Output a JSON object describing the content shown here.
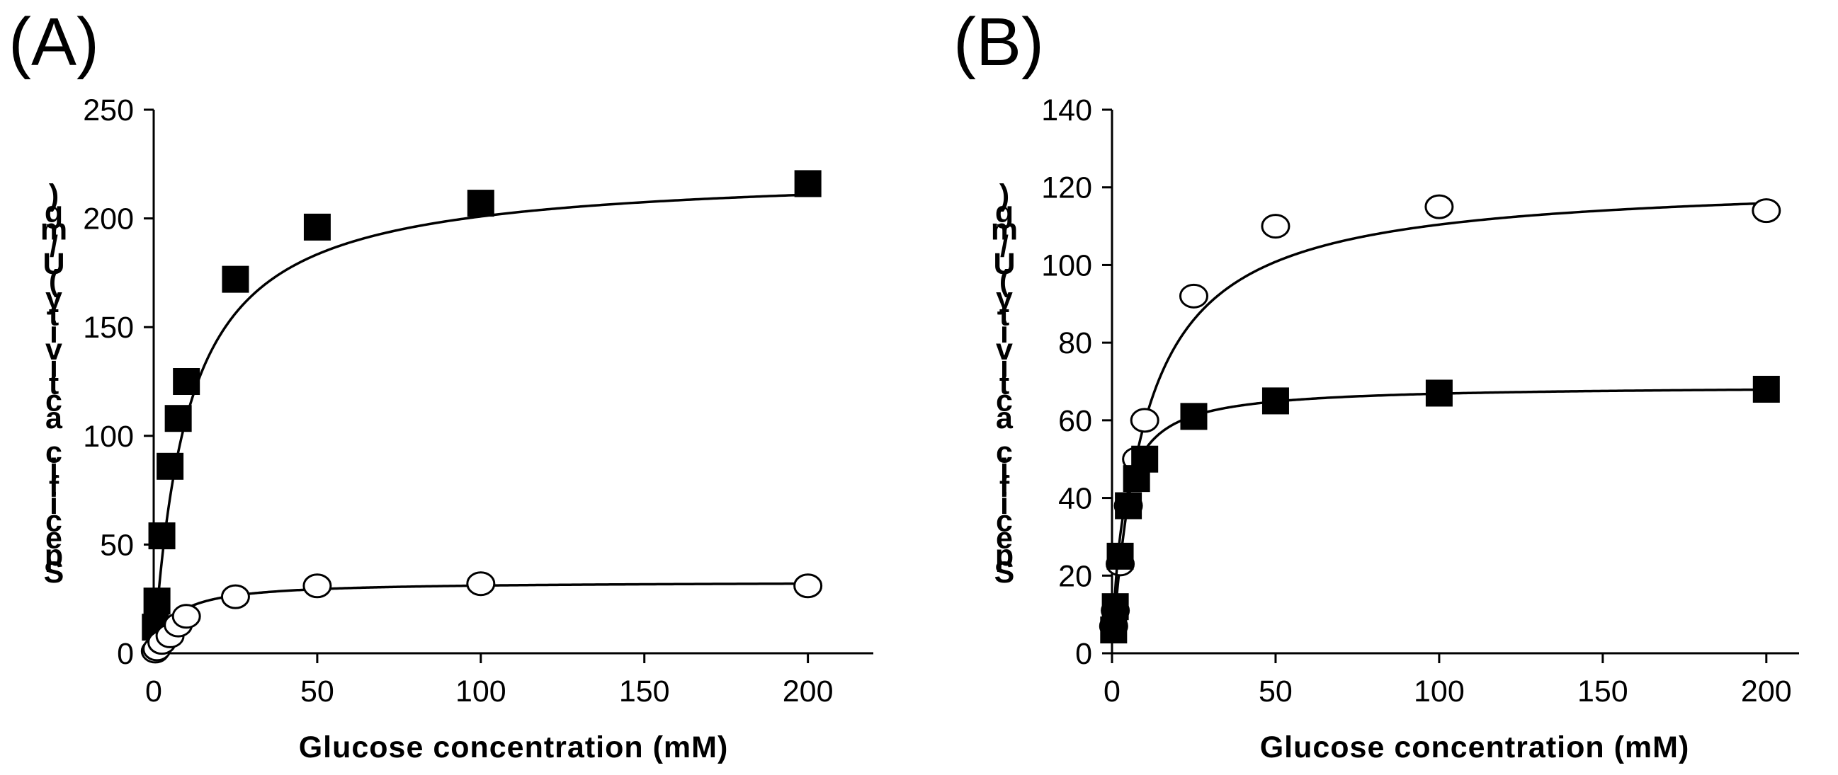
{
  "chart_data": [
    {
      "type": "scatter",
      "panel_label": "(A)",
      "xlabel": "Glucose concentration (mM)",
      "ylabel_chars": [
        ")",
        "g",
        "m",
        "/",
        "U",
        "(",
        "y",
        "t",
        "i",
        "v",
        "i",
        "t",
        "c",
        "a",
        " ",
        "c",
        "i",
        "f",
        "i",
        "c",
        "e",
        "p",
        "S"
      ],
      "xlim": [
        0,
        220
      ],
      "ylim": [
        0,
        250
      ],
      "xticks": [
        0,
        50,
        100,
        150,
        200
      ],
      "yticks": [
        0,
        50,
        100,
        150,
        200,
        250
      ],
      "grid": false,
      "series": [
        {
          "name": "filled squares",
          "marker": "filled-square",
          "x": [
            0.5,
            1,
            2.5,
            5,
            7.5,
            10,
            25,
            50,
            100,
            200
          ],
          "y": [
            12,
            24,
            54,
            86,
            108,
            125,
            172,
            196,
            207,
            216
          ],
          "fit": {
            "vmax": 222,
            "km": 10.5
          }
        },
        {
          "name": "open circles",
          "marker": "open-circle",
          "x": [
            0.5,
            1,
            2.5,
            5,
            7.5,
            10,
            25,
            50,
            100,
            200
          ],
          "y": [
            1,
            2,
            5,
            8,
            13,
            17,
            26,
            31,
            32,
            31
          ],
          "fit": {
            "vmax": 33,
            "km": 6
          }
        }
      ]
    },
    {
      "type": "scatter",
      "panel_label": "(B)",
      "xlabel": "Glucose concentration (mM)",
      "ylabel_chars": [
        ")",
        "g",
        "m",
        "/",
        "U",
        "(",
        "y",
        "t",
        "i",
        "v",
        "i",
        "t",
        "c",
        "a",
        " ",
        "c",
        "i",
        "f",
        "i",
        "c",
        "e",
        "p",
        "S"
      ],
      "xlim": [
        0,
        210
      ],
      "ylim": [
        0,
        140
      ],
      "xticks": [
        0,
        50,
        100,
        150,
        200
      ],
      "yticks": [
        0,
        20,
        40,
        60,
        80,
        100,
        120,
        140
      ],
      "grid": false,
      "series": [
        {
          "name": "open circles",
          "marker": "open-circle",
          "x": [
            0.5,
            1,
            2.5,
            5,
            7.5,
            10,
            25,
            50,
            100,
            200
          ],
          "y": [
            7,
            11,
            23,
            38,
            50,
            60,
            92,
            110,
            115,
            114
          ],
          "fit": {
            "vmax": 122,
            "km": 10.5
          }
        },
        {
          "name": "filled squares",
          "marker": "filled-square",
          "x": [
            0.5,
            1,
            2.5,
            5,
            7.5,
            10,
            25,
            50,
            100,
            200
          ],
          "y": [
            6,
            12,
            25,
            38,
            45,
            50,
            61,
            65,
            67,
            68
          ],
          "fit": {
            "vmax": 69,
            "km": 3.2
          }
        }
      ]
    }
  ]
}
